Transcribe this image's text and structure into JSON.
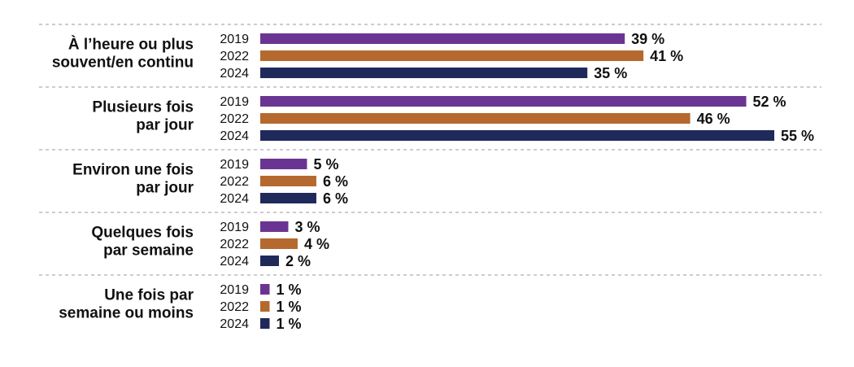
{
  "chart_data": {
    "type": "bar",
    "orientation": "horizontal",
    "categories": [
      [
        "À l’heure ou plus",
        "souvent/en continu"
      ],
      [
        "Plusieurs fois",
        "par jour"
      ],
      [
        "Environ une fois",
        "par jour"
      ],
      [
        "Quelques fois",
        "par semaine"
      ],
      [
        "Une fois par",
        "semaine ou moins"
      ]
    ],
    "series": [
      {
        "name": "2019",
        "color": "#6a3592",
        "values": [
          39,
          52,
          5,
          3,
          1
        ]
      },
      {
        "name": "2022",
        "color": "#b5692e",
        "values": [
          41,
          46,
          6,
          4,
          1
        ]
      },
      {
        "name": "2024",
        "color": "#1f2a5a",
        "values": [
          35,
          55,
          6,
          2,
          1
        ]
      }
    ],
    "value_suffix": " %",
    "xlim": [
      0,
      55
    ],
    "grid": false,
    "group_separators": "dashed"
  }
}
